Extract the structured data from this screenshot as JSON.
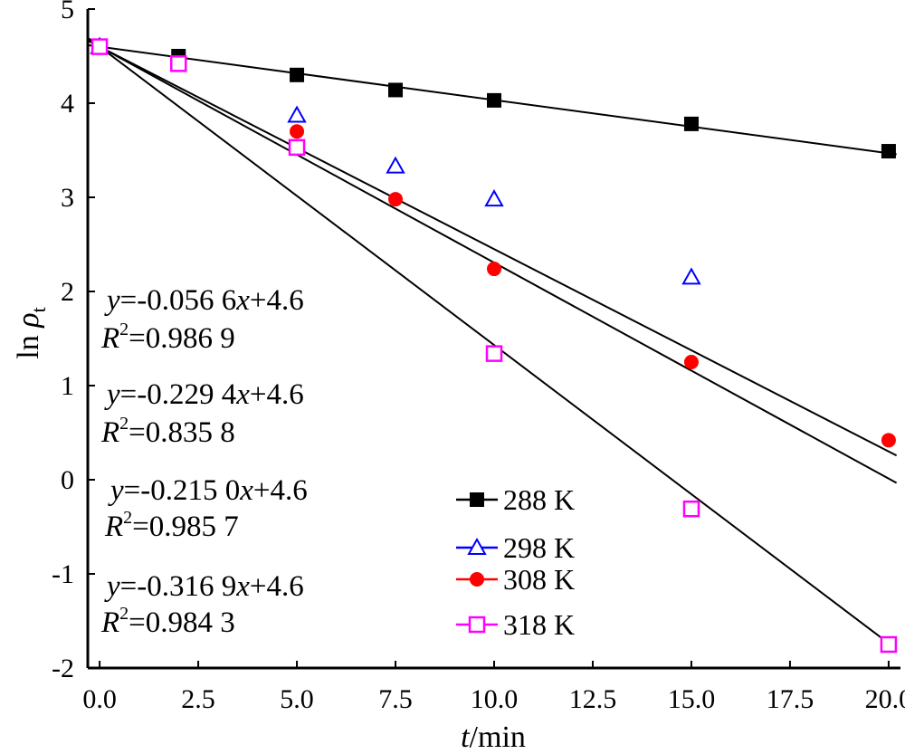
{
  "chart_data": {
    "type": "scatter",
    "xlabel_var": "t",
    "xlabel_unit": "/min",
    "ylabel_prefix": "ln ",
    "ylabel_var": "ρ",
    "ylabel_sub": "t",
    "xlim": [
      -0.3,
      20.3
    ],
    "ylim": [
      -2.0,
      5.0
    ],
    "xticks": [
      "0.0",
      "2.5",
      "5.0",
      "7.5",
      "10.0",
      "12.5",
      "15.0",
      "17.5",
      "20.0"
    ],
    "yticks": [
      "-2",
      "-1",
      "0",
      "1",
      "2",
      "3",
      "4",
      "5"
    ],
    "series": [
      {
        "name": "288 K",
        "marker": "square-filled",
        "color": "#000000",
        "x": [
          0,
          2,
          5,
          7.5,
          10,
          15,
          20
        ],
        "y": [
          4.6,
          4.5,
          4.3,
          4.14,
          4.03,
          3.78,
          3.49
        ]
      },
      {
        "name": "298 K",
        "marker": "triangle-open",
        "color": "#0000ff",
        "x": [
          0,
          5,
          7.5,
          10,
          15
        ],
        "y": [
          4.6,
          3.87,
          3.33,
          2.98,
          2.15
        ]
      },
      {
        "name": "308 K",
        "marker": "circle-filled",
        "color": "#ff0000",
        "x": [
          0,
          5,
          7.5,
          10,
          15,
          20
        ],
        "y": [
          4.6,
          3.7,
          2.98,
          2.24,
          1.25,
          0.42
        ]
      },
      {
        "name": "318 K",
        "marker": "square-open",
        "color": "#ff00ff",
        "x": [
          0,
          2,
          5,
          10,
          15,
          20
        ],
        "y": [
          4.6,
          4.42,
          3.53,
          1.34,
          -0.31,
          -1.75
        ]
      }
    ],
    "fit_lines": [
      {
        "slope": -0.0566,
        "intercept": 4.6
      },
      {
        "slope": -0.2294,
        "intercept": 4.6
      },
      {
        "slope": -0.215,
        "intercept": 4.6
      },
      {
        "slope": -0.3169,
        "intercept": 4.6
      }
    ],
    "equations": [
      {
        "y": "y",
        "eq": "=-0.056 6",
        "x": "x",
        "tail": "+4.6",
        "r": "R",
        "sup": "2",
        "r2": "=0.986 9"
      },
      {
        "y": "y",
        "eq": "=-0.229 4",
        "x": "x",
        "tail": "+4.6",
        "r": "R",
        "sup": "2",
        "r2": "=0.835 8"
      },
      {
        "y": "y",
        "eq": "=-0.215 0",
        "x": "x",
        "tail": "+4.6",
        "r": "R",
        "sup": "2",
        "r2": "=0.985 7"
      },
      {
        "y": "y",
        "eq": "=-0.316 9",
        "x": "x",
        "tail": "+4.6",
        "r": "R",
        "sup": "2",
        "r2": "=0.984 3"
      }
    ]
  }
}
